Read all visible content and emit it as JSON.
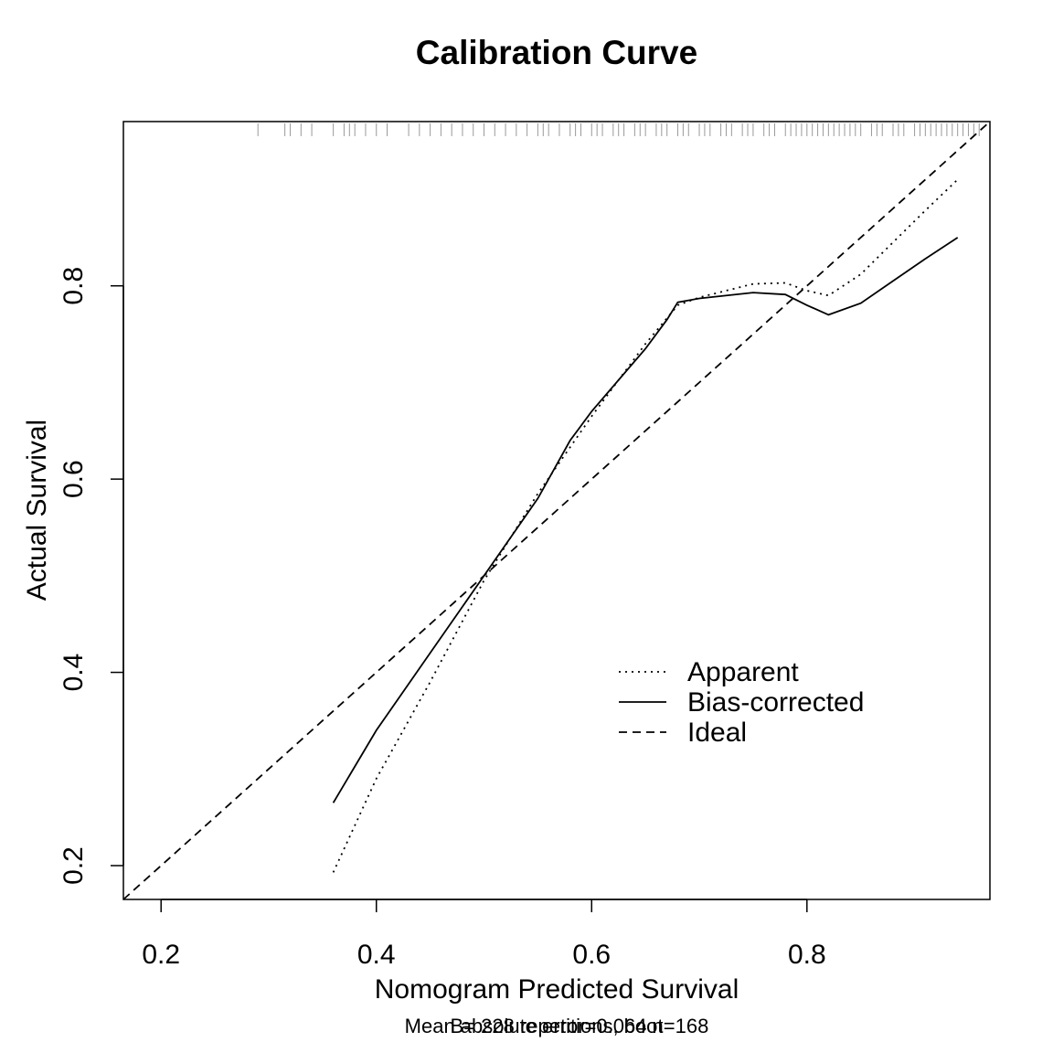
{
  "chart_data": {
    "type": "line",
    "title": "Calibration Curve",
    "xlabel": "Nomogram Predicted Survival",
    "ylabel": "Actual Survival",
    "xlim": [
      0.165,
      0.97
    ],
    "ylim": [
      0.165,
      0.97
    ],
    "x_ticks": [
      0.2,
      0.4,
      0.6,
      0.8
    ],
    "x_tick_labels": [
      "0.2",
      "0.4",
      "0.6",
      "0.8"
    ],
    "y_ticks": [
      0.2,
      0.4,
      0.6,
      0.8
    ],
    "y_tick_labels": [
      "0.2",
      "0.4",
      "0.6",
      "0.8"
    ],
    "subtitle_lines": [
      "Mean absolute error=0.064 n=168",
      "B= 228 repetitions, boot"
    ],
    "legend": {
      "placement": "bottom-right",
      "entries": [
        {
          "label": "Apparent",
          "style": "dotted"
        },
        {
          "label": "Bias-corrected",
          "style": "solid"
        },
        {
          "label": "Ideal",
          "style": "dashed"
        }
      ]
    },
    "series": [
      {
        "name": "Apparent",
        "style": "dotted",
        "x": [
          0.36,
          0.4,
          0.45,
          0.5,
          0.55,
          0.6,
          0.65,
          0.68,
          0.7,
          0.75,
          0.78,
          0.8,
          0.82,
          0.85,
          0.88,
          0.91,
          0.94
        ],
        "y": [
          0.193,
          0.29,
          0.39,
          0.495,
          0.585,
          0.665,
          0.74,
          0.78,
          0.788,
          0.802,
          0.803,
          0.795,
          0.79,
          0.812,
          0.845,
          0.878,
          0.91
        ]
      },
      {
        "name": "Bias-corrected",
        "style": "solid",
        "x": [
          0.36,
          0.4,
          0.45,
          0.5,
          0.55,
          0.58,
          0.6,
          0.65,
          0.67,
          0.68,
          0.7,
          0.75,
          0.78,
          0.8,
          0.82,
          0.85,
          0.88,
          0.91,
          0.94
        ],
        "y": [
          0.265,
          0.34,
          0.42,
          0.5,
          0.58,
          0.64,
          0.67,
          0.735,
          0.765,
          0.783,
          0.787,
          0.793,
          0.791,
          0.78,
          0.77,
          0.782,
          0.805,
          0.828,
          0.85
        ]
      },
      {
        "name": "Ideal",
        "style": "dashed",
        "x": [
          0.165,
          0.97
        ],
        "y": [
          0.165,
          0.97
        ]
      }
    ],
    "rug_x": [
      0.29,
      0.315,
      0.32,
      0.33,
      0.34,
      0.36,
      0.37,
      0.375,
      0.38,
      0.39,
      0.4,
      0.41,
      0.43,
      0.44,
      0.45,
      0.46,
      0.47,
      0.48,
      0.49,
      0.5,
      0.51,
      0.52,
      0.53,
      0.54,
      0.55,
      0.555,
      0.56,
      0.57,
      0.58,
      0.585,
      0.59,
      0.6,
      0.605,
      0.61,
      0.62,
      0.625,
      0.63,
      0.64,
      0.645,
      0.65,
      0.66,
      0.665,
      0.67,
      0.68,
      0.685,
      0.69,
      0.7,
      0.705,
      0.71,
      0.72,
      0.725,
      0.73,
      0.74,
      0.745,
      0.75,
      0.76,
      0.765,
      0.77,
      0.78,
      0.785,
      0.79,
      0.795,
      0.8,
      0.805,
      0.81,
      0.815,
      0.82,
      0.825,
      0.83,
      0.835,
      0.84,
      0.845,
      0.85,
      0.86,
      0.865,
      0.87,
      0.88,
      0.885,
      0.89,
      0.9,
      0.905,
      0.91,
      0.915,
      0.92,
      0.925,
      0.93,
      0.935,
      0.94,
      0.945,
      0.95,
      0.955,
      0.96
    ]
  }
}
